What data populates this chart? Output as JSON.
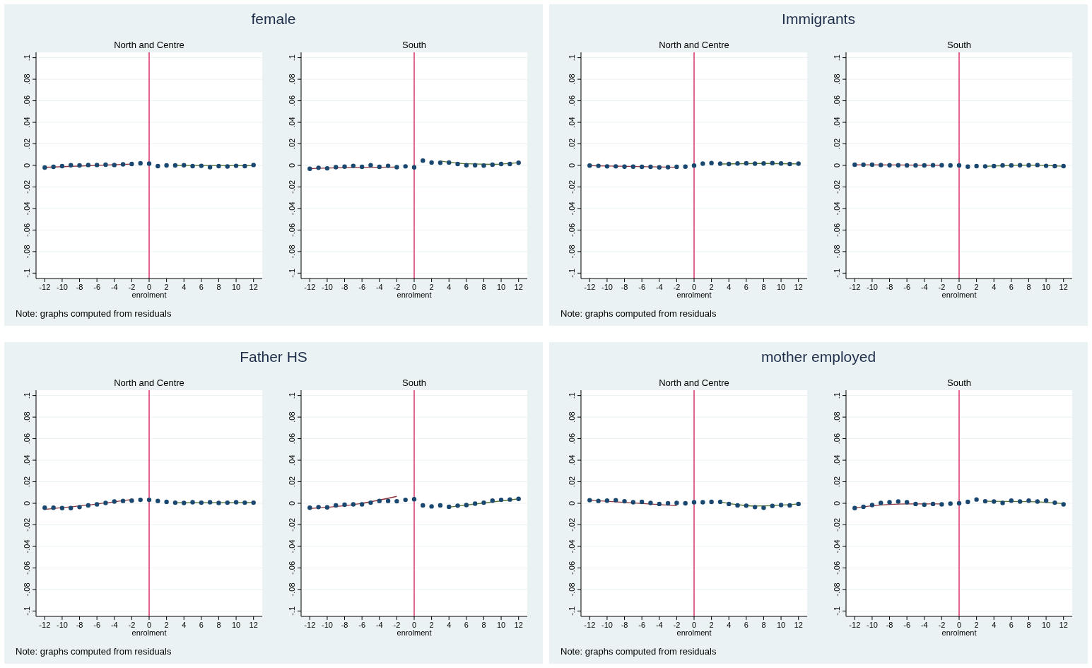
{
  "chart_data": [
    {
      "type": "scatter",
      "title": "female",
      "subtitle": "North and Centre",
      "xlabel": "enrolment",
      "annotations": [
        "Note: graphs computed from residuals"
      ],
      "xlim": [
        -13,
        13
      ],
      "xticks": [
        -12,
        -10,
        -8,
        -6,
        -4,
        -2,
        0,
        2,
        4,
        6,
        8,
        10,
        12
      ],
      "ylim": [
        -0.105,
        0.105
      ],
      "yticks": [
        {
          "value": -0.1,
          "label": "-.1"
        },
        {
          "value": -0.08,
          "label": "-.08"
        },
        {
          "value": -0.06,
          "label": "-.06"
        },
        {
          "value": -0.04,
          "label": "-.04"
        },
        {
          "value": -0.02,
          "label": "-.02"
        },
        {
          "value": 0,
          "label": "0"
        },
        {
          "value": 0.02,
          "label": ".02"
        },
        {
          "value": 0.04,
          "label": ".04"
        },
        {
          "value": 0.06,
          "label": ".06"
        },
        {
          "value": 0.08,
          "label": ".08"
        },
        {
          "value": 0.1,
          "label": ".1"
        }
      ],
      "grid": "y",
      "ref_lines": [
        {
          "axis": "x",
          "value": 0,
          "color": "#d6114f"
        }
      ],
      "series": [
        {
          "type": "scatter",
          "marker": "circle",
          "color": "#1a476f",
          "x": [
            -12,
            -11,
            -10,
            -9,
            -8,
            -7,
            -6,
            -5,
            -4,
            -3,
            -2,
            -1,
            0,
            1,
            2,
            3,
            4,
            5,
            6,
            7,
            8,
            9,
            10,
            11,
            12
          ],
          "values": [
            -0.002,
            -0.0013,
            -0.0007,
            0.0002,
            0,
            0.0004,
            0.0004,
            0.0007,
            0.0004,
            0.001,
            0.0013,
            0.002,
            0.0016,
            -0.0007,
            0,
            0,
            0.0002,
            -0.0007,
            -0.0004,
            -0.0016,
            -0.0007,
            -0.001,
            -0.0004,
            -0.0007,
            0.0004
          ]
        },
        {
          "type": "line",
          "color": "#90353b",
          "x": [
            -12,
            -2
          ],
          "values": [
            -0.0018,
            0.0012
          ]
        },
        {
          "type": "line",
          "color": "#55752f",
          "x": [
            3,
            12
          ],
          "values": [
            0,
            -0.0003
          ]
        }
      ]
    },
    {
      "type": "scatter",
      "subtitle": "South",
      "xlabel": "enrolment",
      "xlim": [
        -13,
        13
      ],
      "xticks": [
        -12,
        -10,
        -8,
        -6,
        -4,
        -2,
        0,
        2,
        4,
        6,
        8,
        10,
        12
      ],
      "ylim": [
        -0.105,
        0.105
      ],
      "yticks": [
        {
          "value": -0.1,
          "label": "-.1"
        },
        {
          "value": -0.08,
          "label": "-.08"
        },
        {
          "value": -0.06,
          "label": "-.06"
        },
        {
          "value": -0.04,
          "label": "-.04"
        },
        {
          "value": -0.02,
          "label": "-.02"
        },
        {
          "value": 0,
          "label": "0"
        },
        {
          "value": 0.02,
          "label": ".02"
        },
        {
          "value": 0.04,
          "label": ".04"
        },
        {
          "value": 0.06,
          "label": ".06"
        },
        {
          "value": 0.08,
          "label": ".08"
        },
        {
          "value": 0.1,
          "label": ".1"
        }
      ],
      "grid": "y",
      "ref_lines": [
        {
          "axis": "x",
          "value": 0,
          "color": "#d6114f"
        }
      ],
      "series": [
        {
          "type": "scatter",
          "marker": "circle",
          "color": "#1a476f",
          "x": [
            -12,
            -11,
            -10,
            -9,
            -8,
            -7,
            -6,
            -5,
            -4,
            -3,
            -2,
            -1,
            0,
            1,
            2,
            3,
            4,
            5,
            6,
            7,
            8,
            9,
            10,
            11,
            12
          ],
          "values": [
            -0.0031,
            -0.0022,
            -0.0027,
            -0.0016,
            -0.0011,
            -0.0004,
            -0.0013,
            0.0002,
            -0.0013,
            -0.0004,
            -0.0016,
            -0.0009,
            -0.0018,
            0.0045,
            0.0027,
            0.0025,
            0.0027,
            0.0013,
            0.0002,
            0.0002,
            -0.0002,
            0.0007,
            0.0013,
            0.0013,
            0.0025
          ]
        },
        {
          "type": "line",
          "color": "#90353b",
          "x": [
            -12,
            -7,
            -2
          ],
          "values": [
            -0.003,
            -0.0019,
            -0.0016
          ]
        },
        {
          "type": "line",
          "color": "#55752f",
          "x": [
            3,
            6,
            9,
            12
          ],
          "values": [
            0.004,
            0.0015,
            0.001,
            0.0025
          ]
        }
      ]
    },
    {
      "type": "scatter",
      "title": "Immigrants",
      "subtitle": "North and Centre",
      "xlabel": "enrolment",
      "annotations": [
        "Note: graphs computed from residuals"
      ],
      "xlim": [
        -13,
        13
      ],
      "xticks": [
        -12,
        -10,
        -8,
        -6,
        -4,
        -2,
        0,
        2,
        4,
        6,
        8,
        10,
        12
      ],
      "ylim": [
        -0.105,
        0.105
      ],
      "yticks": [
        {
          "value": -0.1,
          "label": "-.1"
        },
        {
          "value": -0.08,
          "label": "-.08"
        },
        {
          "value": -0.06,
          "label": "-.06"
        },
        {
          "value": -0.04,
          "label": "-.04"
        },
        {
          "value": -0.02,
          "label": "-.02"
        },
        {
          "value": 0,
          "label": "0"
        },
        {
          "value": 0.02,
          "label": ".02"
        },
        {
          "value": 0.04,
          "label": ".04"
        },
        {
          "value": 0.06,
          "label": ".06"
        },
        {
          "value": 0.08,
          "label": ".08"
        },
        {
          "value": 0.1,
          "label": ".1"
        }
      ],
      "grid": "y",
      "ref_lines": [
        {
          "axis": "x",
          "value": 0,
          "color": "#d6114f"
        }
      ],
      "series": [
        {
          "type": "scatter",
          "marker": "circle",
          "color": "#1a476f",
          "x": [
            -12,
            -11,
            -10,
            -9,
            -8,
            -7,
            -6,
            -5,
            -4,
            -3,
            -2,
            -1,
            0,
            1,
            2,
            3,
            4,
            5,
            6,
            7,
            8,
            9,
            10,
            11,
            12
          ],
          "values": [
            -0.0002,
            -0.0004,
            -0.0009,
            -0.0009,
            -0.0011,
            -0.0011,
            -0.0013,
            -0.0013,
            -0.0018,
            -0.0016,
            -0.0013,
            -0.0011,
            -0.0002,
            0.0016,
            0.0022,
            0.0016,
            0.0013,
            0.0018,
            0.002,
            0.0016,
            0.0018,
            0.0022,
            0.0018,
            0.0013,
            0.0016
          ]
        },
        {
          "type": "line",
          "color": "#90353b",
          "x": [
            -12,
            -2
          ],
          "values": [
            -0.0002,
            -0.0017
          ]
        },
        {
          "type": "line",
          "color": "#55752f",
          "x": [
            3,
            8,
            12
          ],
          "values": [
            0.0013,
            0.0018,
            0.0014
          ]
        }
      ]
    },
    {
      "type": "scatter",
      "subtitle": "South",
      "xlabel": "enrolment",
      "xlim": [
        -13,
        13
      ],
      "xticks": [
        -12,
        -10,
        -8,
        -6,
        -4,
        -2,
        0,
        2,
        4,
        6,
        8,
        10,
        12
      ],
      "ylim": [
        -0.105,
        0.105
      ],
      "yticks": [
        {
          "value": -0.1,
          "label": "-.1"
        },
        {
          "value": -0.08,
          "label": "-.08"
        },
        {
          "value": -0.06,
          "label": "-.06"
        },
        {
          "value": -0.04,
          "label": "-.04"
        },
        {
          "value": -0.02,
          "label": "-.02"
        },
        {
          "value": 0,
          "label": "0"
        },
        {
          "value": 0.02,
          "label": ".02"
        },
        {
          "value": 0.04,
          "label": ".04"
        },
        {
          "value": 0.06,
          "label": ".06"
        },
        {
          "value": 0.08,
          "label": ".08"
        },
        {
          "value": 0.1,
          "label": ".1"
        }
      ],
      "grid": "y",
      "ref_lines": [
        {
          "axis": "x",
          "value": 0,
          "color": "#d6114f"
        }
      ],
      "series": [
        {
          "type": "scatter",
          "marker": "circle",
          "color": "#1a476f",
          "x": [
            -12,
            -11,
            -10,
            -9,
            -8,
            -7,
            -6,
            -5,
            -4,
            -3,
            -2,
            -1,
            0,
            1,
            2,
            3,
            4,
            5,
            6,
            7,
            8,
            9,
            10,
            11,
            12
          ],
          "values": [
            0.0007,
            0.0007,
            0.0007,
            0.0004,
            0.0002,
            0.0002,
            0,
            0,
            0,
            0.0002,
            0.0002,
            0,
            0,
            -0.0011,
            -0.0007,
            -0.0009,
            -0.0007,
            0,
            0,
            0.0002,
            0.0002,
            0.0004,
            -0.0004,
            -0.0007,
            -0.0007
          ]
        },
        {
          "type": "line",
          "color": "#90353b",
          "x": [
            -12,
            -2
          ],
          "values": [
            0.0006,
            0.0001
          ]
        },
        {
          "type": "line",
          "color": "#55752f",
          "x": [
            3,
            8,
            12
          ],
          "values": [
            -0.0009,
            0.0002,
            -0.0008
          ]
        }
      ]
    },
    {
      "type": "scatter",
      "title": "Father HS",
      "subtitle": "North and Centre",
      "xlabel": "enrolment",
      "annotations": [
        "Note: graphs computed from residuals"
      ],
      "xlim": [
        -13,
        13
      ],
      "xticks": [
        -12,
        -10,
        -8,
        -6,
        -4,
        -2,
        0,
        2,
        4,
        6,
        8,
        10,
        12
      ],
      "ylim": [
        -0.105,
        0.105
      ],
      "yticks": [
        {
          "value": -0.1,
          "label": "-.1"
        },
        {
          "value": -0.08,
          "label": "-.08"
        },
        {
          "value": -0.06,
          "label": "-.06"
        },
        {
          "value": -0.04,
          "label": "-.04"
        },
        {
          "value": -0.02,
          "label": "-.02"
        },
        {
          "value": 0,
          "label": "0"
        },
        {
          "value": 0.02,
          "label": ".02"
        },
        {
          "value": 0.04,
          "label": ".04"
        },
        {
          "value": 0.06,
          "label": ".06"
        },
        {
          "value": 0.08,
          "label": ".08"
        },
        {
          "value": 0.1,
          "label": ".1"
        }
      ],
      "grid": "y",
      "ref_lines": [
        {
          "axis": "x",
          "value": 0,
          "color": "#d6114f"
        }
      ],
      "series": [
        {
          "type": "scatter",
          "marker": "circle",
          "color": "#1a476f",
          "x": [
            -12,
            -11,
            -10,
            -9,
            -8,
            -7,
            -6,
            -5,
            -4,
            -3,
            -2,
            -1,
            0,
            1,
            2,
            3,
            4,
            5,
            6,
            7,
            8,
            9,
            10,
            11,
            12
          ],
          "values": [
            -0.0041,
            -0.0041,
            -0.0044,
            -0.0044,
            -0.0035,
            -0.0019,
            -0.001,
            0.0003,
            0.0016,
            0.0022,
            0.0025,
            0.0032,
            0.0032,
            0.0022,
            0.0013,
            0.0006,
            0.0003,
            0.001,
            0.0006,
            0.001,
            0.0003,
            0.0006,
            0.001,
            0.0006,
            0.0006
          ]
        },
        {
          "type": "line",
          "color": "#90353b",
          "x": [
            -12,
            -7,
            -2
          ],
          "values": [
            -0.0056,
            -0.0016,
            0.0035
          ]
        },
        {
          "type": "line",
          "color": "#55752f",
          "x": [
            3,
            12
          ],
          "values": [
            0.0006,
            0.0008
          ]
        }
      ]
    },
    {
      "type": "scatter",
      "subtitle": "South",
      "xlabel": "enrolment",
      "xlim": [
        -13,
        13
      ],
      "xticks": [
        -12,
        -10,
        -8,
        -6,
        -4,
        -2,
        0,
        2,
        4,
        6,
        8,
        10,
        12
      ],
      "ylim": [
        -0.105,
        0.105
      ],
      "yticks": [
        {
          "value": -0.1,
          "label": "-.1"
        },
        {
          "value": -0.08,
          "label": "-.08"
        },
        {
          "value": -0.06,
          "label": "-.06"
        },
        {
          "value": -0.04,
          "label": "-.04"
        },
        {
          "value": -0.02,
          "label": "-.02"
        },
        {
          "value": 0,
          "label": "0"
        },
        {
          "value": 0.02,
          "label": ".02"
        },
        {
          "value": 0.04,
          "label": ".04"
        },
        {
          "value": 0.06,
          "label": ".06"
        },
        {
          "value": 0.08,
          "label": ".08"
        },
        {
          "value": 0.1,
          "label": ".1"
        }
      ],
      "grid": "y",
      "ref_lines": [
        {
          "axis": "x",
          "value": 0,
          "color": "#d6114f"
        }
      ],
      "series": [
        {
          "type": "scatter",
          "marker": "circle",
          "color": "#1a476f",
          "x": [
            -12,
            -11,
            -10,
            -9,
            -8,
            -7,
            -6,
            -5,
            -4,
            -3,
            -2,
            -1,
            0,
            1,
            2,
            3,
            4,
            5,
            6,
            7,
            8,
            9,
            10,
            11,
            12
          ],
          "values": [
            -0.0041,
            -0.0035,
            -0.0038,
            -0.0019,
            -0.0013,
            -0.001,
            -0.001,
            0.0006,
            0.0022,
            0.0022,
            0.0019,
            0.0032,
            0.0038,
            -0.0019,
            -0.0029,
            -0.0019,
            -0.0032,
            -0.0022,
            -0.0016,
            -0.0003,
            0.0006,
            0.0025,
            0.0032,
            0.0035,
            0.0041
          ]
        },
        {
          "type": "line",
          "color": "#90353b",
          "x": [
            -12,
            -7,
            -2
          ],
          "values": [
            -0.0048,
            -0.0013,
            0.0064
          ]
        },
        {
          "type": "line",
          "color": "#55752f",
          "x": [
            4,
            12
          ],
          "values": [
            -0.0035,
            0.0041
          ]
        }
      ]
    },
    {
      "type": "scatter",
      "title": "mother employed",
      "subtitle": "North and Centre",
      "xlabel": "enrolment",
      "annotations": [
        "Note: graphs computed from residuals"
      ],
      "xlim": [
        -13,
        13
      ],
      "xticks": [
        -12,
        -10,
        -8,
        -6,
        -4,
        -2,
        0,
        2,
        4,
        6,
        8,
        10,
        12
      ],
      "ylim": [
        -0.105,
        0.105
      ],
      "yticks": [
        {
          "value": -0.1,
          "label": "-.1"
        },
        {
          "value": -0.08,
          "label": "-.08"
        },
        {
          "value": -0.06,
          "label": "-.06"
        },
        {
          "value": -0.04,
          "label": "-.04"
        },
        {
          "value": -0.02,
          "label": "-.02"
        },
        {
          "value": 0,
          "label": "0"
        },
        {
          "value": 0.02,
          "label": ".02"
        },
        {
          "value": 0.04,
          "label": ".04"
        },
        {
          "value": 0.06,
          "label": ".06"
        },
        {
          "value": 0.08,
          "label": ".08"
        },
        {
          "value": 0.1,
          "label": ".1"
        }
      ],
      "grid": "y",
      "ref_lines": [
        {
          "axis": "x",
          "value": 0,
          "color": "#d6114f"
        }
      ],
      "series": [
        {
          "type": "scatter",
          "marker": "circle",
          "color": "#1a476f",
          "x": [
            -12,
            -11,
            -10,
            -9,
            -8,
            -7,
            -6,
            -5,
            -4,
            -3,
            -2,
            -1,
            0,
            1,
            2,
            3,
            4,
            5,
            6,
            7,
            8,
            9,
            10,
            11,
            12
          ],
          "values": [
            0.0029,
            0.0022,
            0.0025,
            0.0029,
            0.0019,
            0.001,
            0.0013,
            0.0003,
            -0.0006,
            0,
            0.0003,
            0,
            0.001,
            0.001,
            0.0013,
            0.0013,
            -0.0006,
            -0.0019,
            -0.0022,
            -0.0035,
            -0.0041,
            -0.0025,
            -0.0016,
            -0.0019,
            -0.0006
          ]
        },
        {
          "type": "line",
          "color": "#90353b",
          "x": [
            -12,
            -2
          ],
          "values": [
            0.0029,
            -0.0022
          ]
        },
        {
          "type": "line",
          "color": "#55752f",
          "x": [
            3,
            5,
            7,
            9,
            12
          ],
          "values": [
            0.0013,
            -0.0013,
            -0.0025,
            -0.0022,
            -0.0006
          ]
        }
      ]
    },
    {
      "type": "scatter",
      "subtitle": "South",
      "xlabel": "enrolment",
      "xlim": [
        -13,
        13
      ],
      "xticks": [
        -12,
        -10,
        -8,
        -6,
        -4,
        -2,
        0,
        2,
        4,
        6,
        8,
        10,
        12
      ],
      "ylim": [
        -0.105,
        0.105
      ],
      "yticks": [
        {
          "value": -0.1,
          "label": "-.1"
        },
        {
          "value": -0.08,
          "label": "-.08"
        },
        {
          "value": -0.06,
          "label": "-.06"
        },
        {
          "value": -0.04,
          "label": "-.04"
        },
        {
          "value": -0.02,
          "label": "-.02"
        },
        {
          "value": 0,
          "label": "0"
        },
        {
          "value": 0.02,
          "label": ".02"
        },
        {
          "value": 0.04,
          "label": ".04"
        },
        {
          "value": 0.06,
          "label": ".06"
        },
        {
          "value": 0.08,
          "label": ".08"
        },
        {
          "value": 0.1,
          "label": ".1"
        }
      ],
      "grid": "y",
      "ref_lines": [
        {
          "axis": "x",
          "value": 0,
          "color": "#d6114f"
        }
      ],
      "series": [
        {
          "type": "scatter",
          "marker": "circle",
          "color": "#1a476f",
          "x": [
            -12,
            -11,
            -10,
            -9,
            -8,
            -7,
            -6,
            -5,
            -4,
            -3,
            -2,
            -1,
            0,
            1,
            2,
            3,
            4,
            5,
            6,
            7,
            8,
            9,
            10,
            11,
            12
          ],
          "values": [
            -0.0044,
            -0.0032,
            -0.0016,
            0.0003,
            0.001,
            0.0016,
            0.001,
            -0.0006,
            -0.0013,
            -0.0006,
            -0.001,
            -0.0003,
            0,
            0.0013,
            0.0035,
            0.0019,
            0.0016,
            0.0003,
            0.0025,
            0.0016,
            0.0025,
            0.0016,
            0.0025,
            0.0006,
            -0.001
          ]
        },
        {
          "type": "line",
          "color": "#90353b",
          "x": [
            -12,
            -9,
            -6,
            -2
          ],
          "values": [
            -0.0044,
            -0.0016,
            -0.0006,
            -0.0006
          ]
        },
        {
          "type": "line",
          "color": "#55752f",
          "x": [
            3,
            8,
            12
          ],
          "values": [
            0.0019,
            0.0016,
            -0.0003
          ]
        }
      ]
    }
  ]
}
